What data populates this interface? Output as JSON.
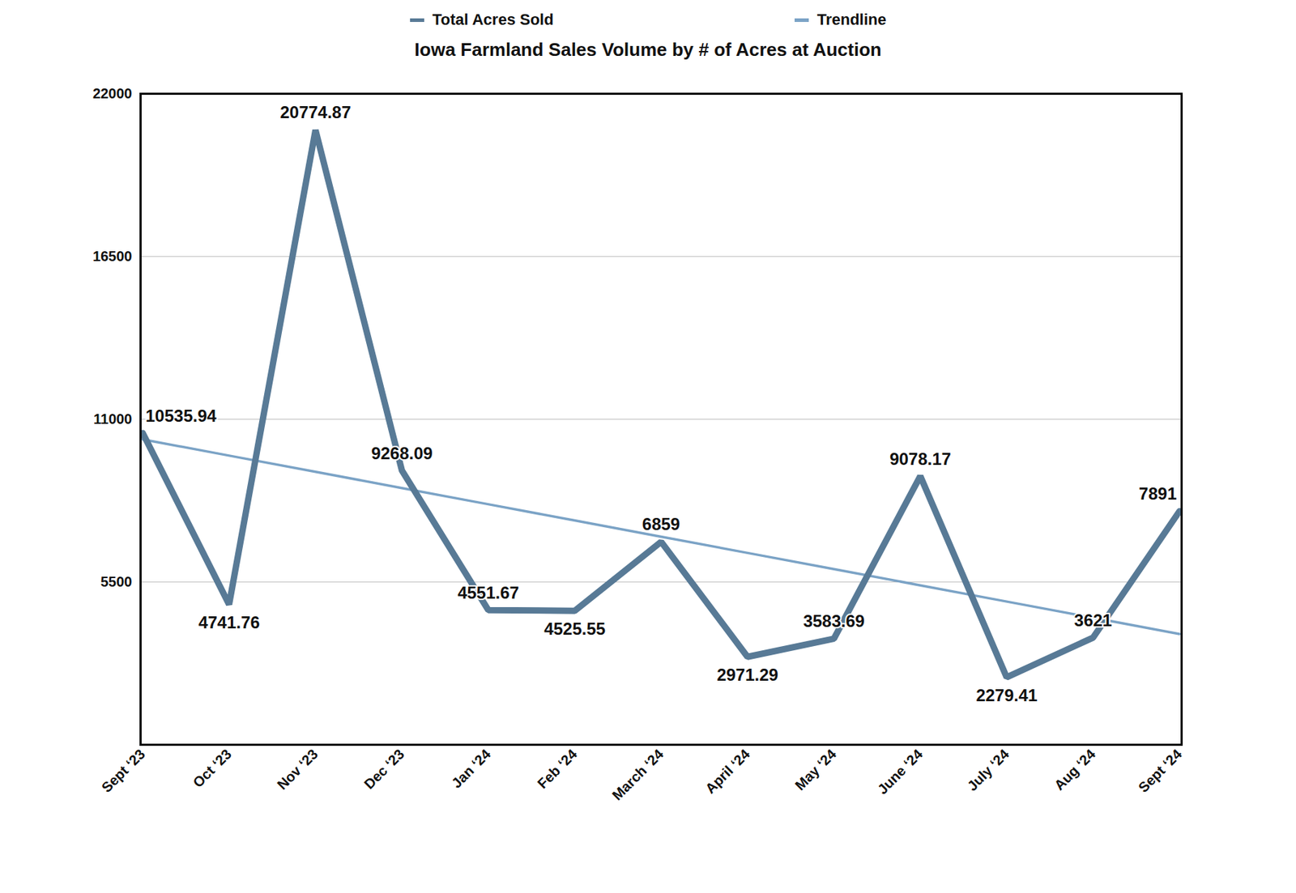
{
  "chart_data": {
    "type": "line",
    "title": "Iowa Farmland Sales Volume by # of Acres at Auction",
    "categories": [
      "Sept ‘23",
      "Oct ‘23",
      "Nov ‘23",
      "Dec ‘23",
      "Jan ‘24",
      "Feb ‘24",
      "March ‘24",
      "April ‘24",
      "May ‘24",
      "June ‘24",
      "July ‘24",
      "Aug ‘24",
      "Sept ‘24"
    ],
    "series": [
      {
        "name": "Total Acres Sold",
        "color": "#587a96",
        "data_labels": true,
        "values": [
          10535.94,
          4741.76,
          20774.87,
          9268.09,
          4551.67,
          4525.55,
          6859,
          2971.29,
          3583.69,
          9078.17,
          2279.41,
          3621,
          7891
        ]
      },
      {
        "name": "Trendline",
        "color": "#7ba3c6",
        "data_labels": false,
        "values": [
          10320,
          9772,
          9224,
          8676,
          8128,
          7580,
          7032,
          6484,
          5936,
          5388,
          4840,
          4292,
          3742
        ]
      }
    ],
    "ylim": [
      0,
      22000
    ],
    "yticks": [
      5500,
      11000,
      16500,
      22000
    ],
    "grid": true,
    "legend": "top"
  }
}
